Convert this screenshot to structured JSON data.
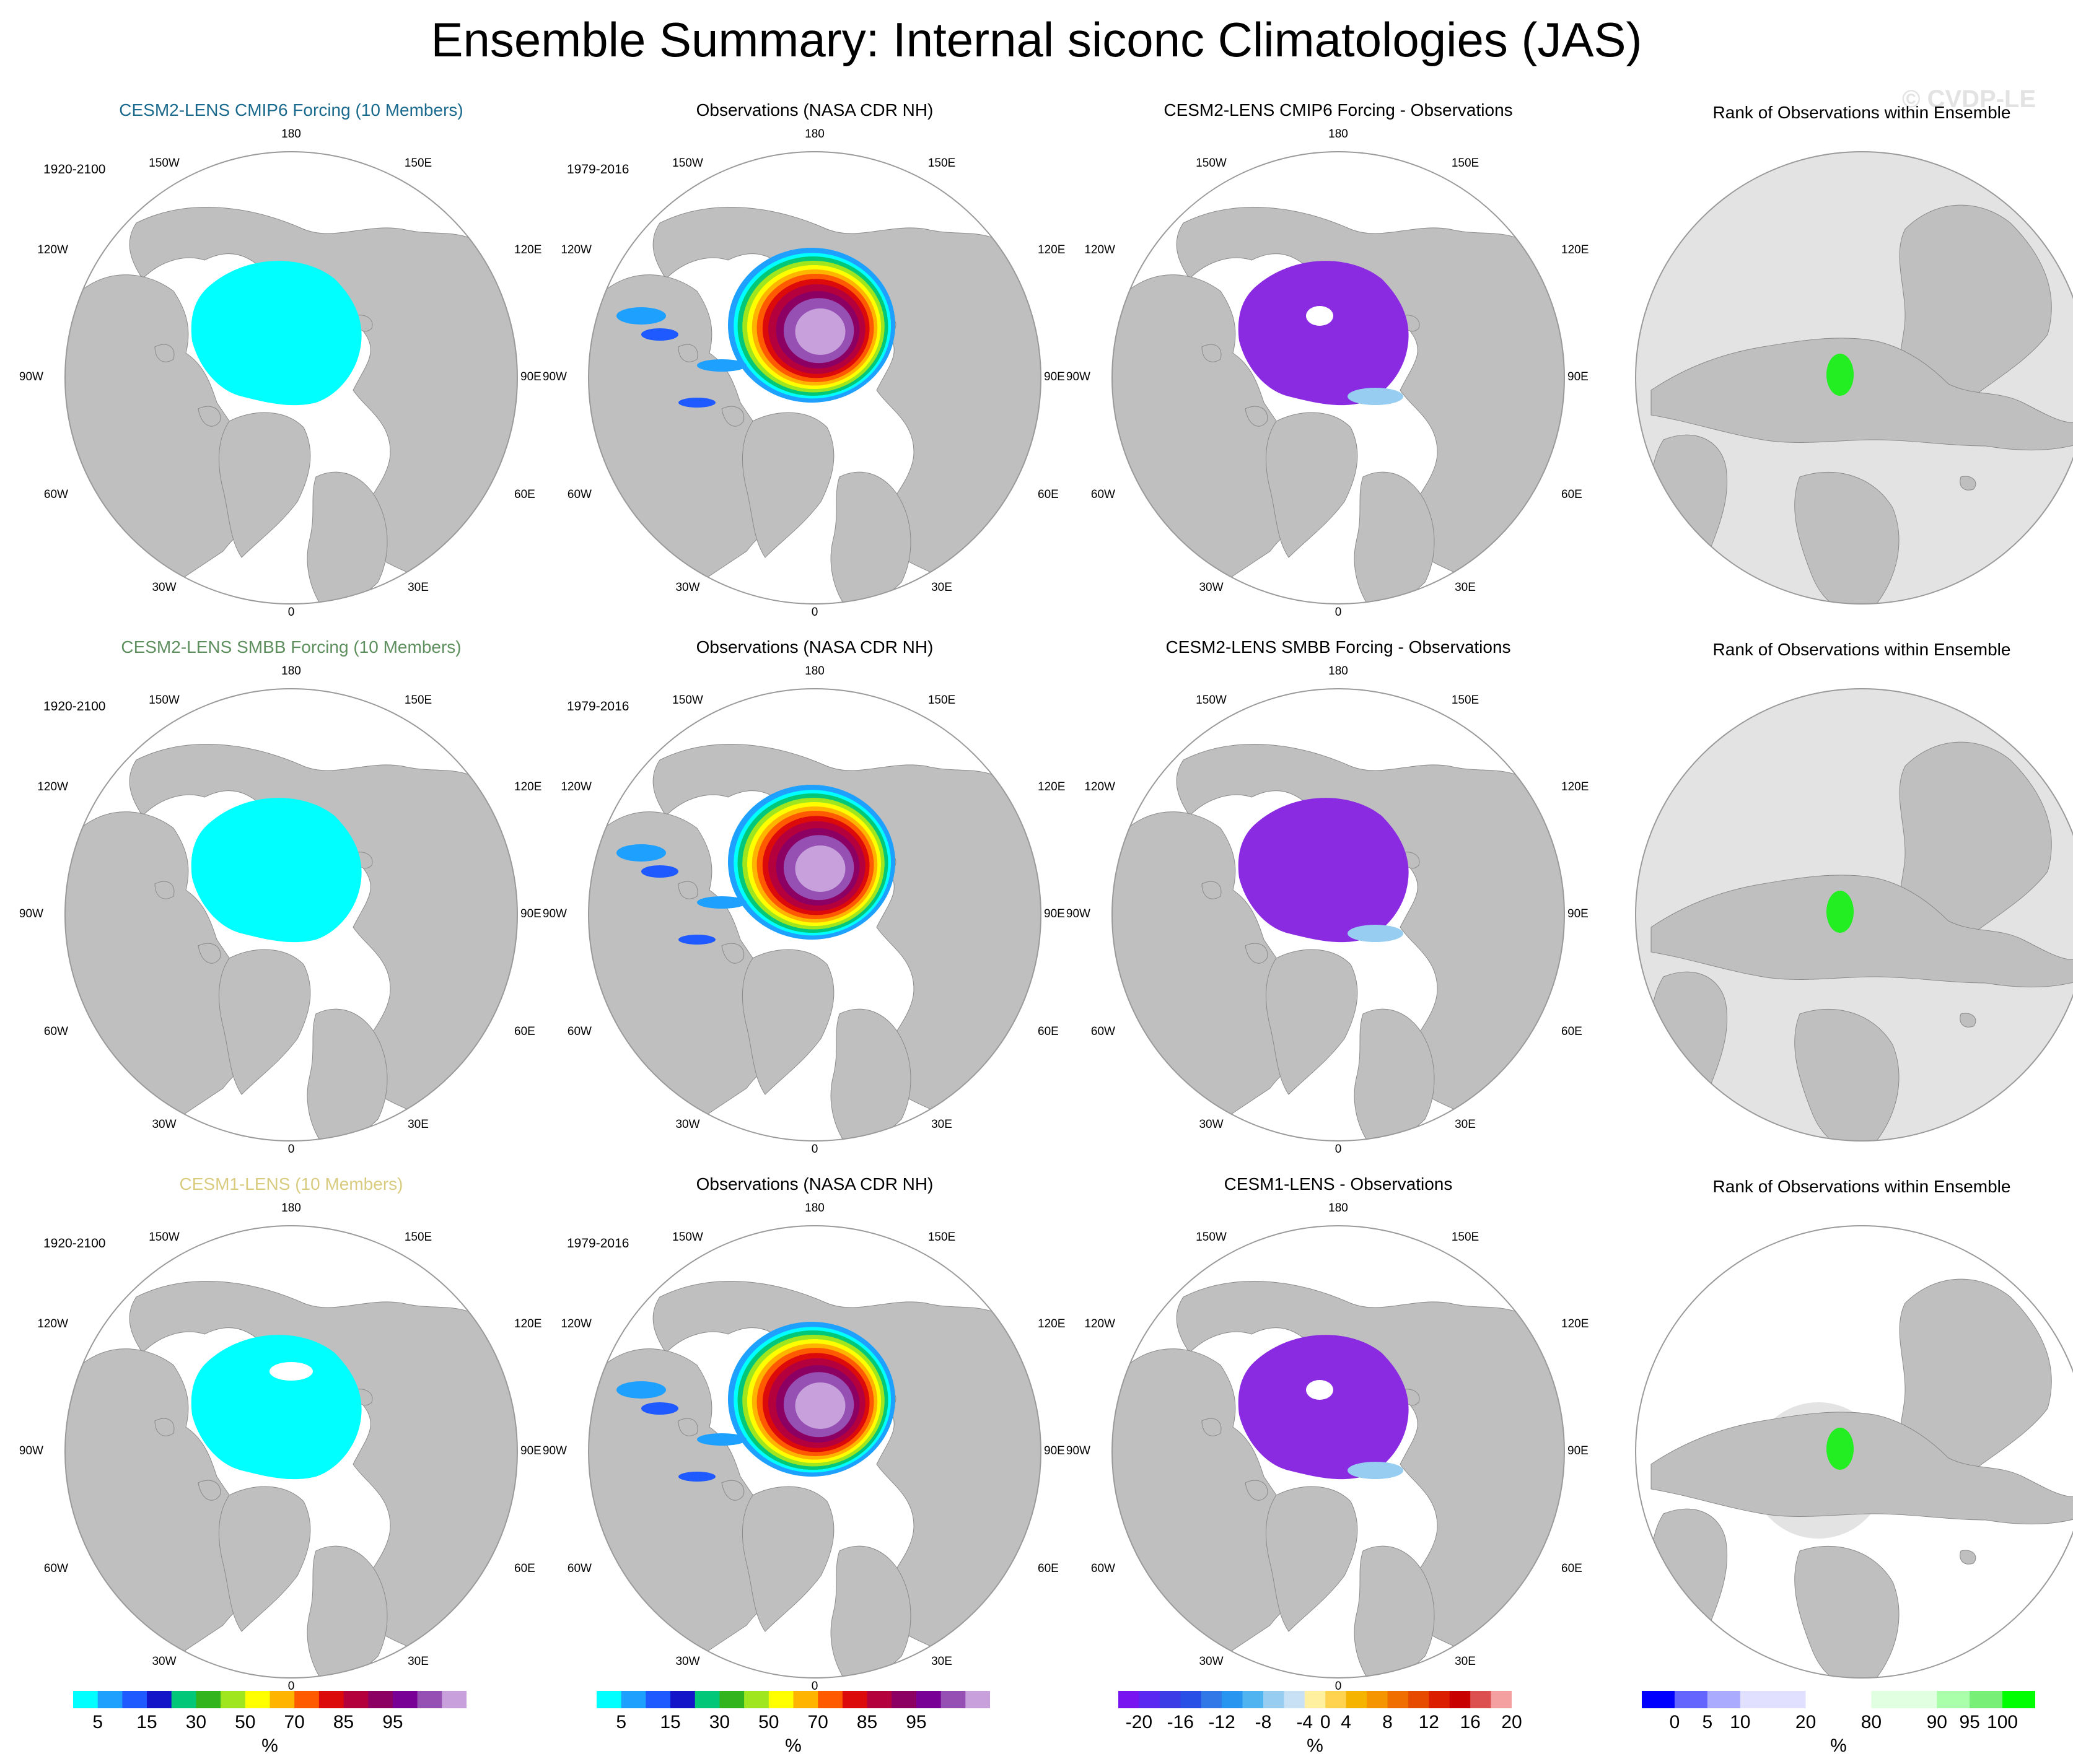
{
  "title": "Ensemble Summary: Internal siconc Climatologies (JAS)",
  "watermark": "© CVDP-LE",
  "colors": {
    "land": "#bfbfbf",
    "ocean": "#ffffff",
    "rank_disk": "#e3e3e3",
    "cesm2_cmip6_title": "#1a6a8e",
    "cesm2_smbb_title": "#5e8f5e",
    "cesm1_title": "#d9cc80",
    "model_ice": "#00ffff",
    "diff_ice": "#8a2be2",
    "rank_green": "#22ee22"
  },
  "rows": [
    {
      "model_title": "CESM2-LENS CMIP6 Forcing (10 Members)",
      "model_period": "1920-2100",
      "obs_title": "Observations (NASA CDR NH)",
      "obs_period": "1979-2016",
      "diff_title": "CESM2-LENS CMIP6 Forcing - Observations",
      "rank_title": "Rank of Observations within Ensemble"
    },
    {
      "model_title": "CESM2-LENS SMBB Forcing (10 Members)",
      "model_period": "1920-2100",
      "obs_title": "Observations (NASA CDR NH)",
      "obs_period": "1979-2016",
      "diff_title": "CESM2-LENS SMBB Forcing - Observations",
      "rank_title": "Rank of Observations within Ensemble"
    },
    {
      "model_title": "CESM1-LENS (10 Members)",
      "model_period": "1920-2100",
      "obs_title": "Observations (NASA CDR NH)",
      "obs_period": "1979-2016",
      "diff_title": "CESM1-LENS - Observations",
      "rank_title": "Rank of Observations within Ensemble"
    }
  ],
  "lon_labels": {
    "top": "180",
    "upper_left": "150W",
    "upper_right": "150E",
    "mid_upper_left": "120W",
    "mid_upper_right": "120E",
    "left": "90W",
    "right": "90E",
    "mid_lower_left": "60W",
    "mid_lower_right": "60E",
    "lower_left": "30W",
    "lower_right": "30E",
    "bottom": "0"
  },
  "colorbars": {
    "conc": {
      "unit": "%",
      "colors": [
        "#00ffff",
        "#1ea0ff",
        "#1e5aff",
        "#1414c8",
        "#00c878",
        "#32b41e",
        "#a0e61e",
        "#ffff00",
        "#ffb400",
        "#ff5a00",
        "#dc0a0a",
        "#b4003c",
        "#8c0064",
        "#780096",
        "#9650b4",
        "#c8a0dc"
      ],
      "labels": [
        "5",
        "15",
        "30",
        "50",
        "70",
        "85",
        "95"
      ]
    },
    "diff": {
      "unit": "%",
      "colors": [
        "#7814f0",
        "#5a28f0",
        "#3c3ce6",
        "#2850e6",
        "#3278e6",
        "#2896f0",
        "#50b4f0",
        "#96cdf0",
        "#c8e1f5",
        "#fff0a0",
        "#ffd250",
        "#f5b400",
        "#f59600",
        "#f06e00",
        "#e64b00",
        "#dc1e00",
        "#c80000",
        "#dc5050",
        "#f5a0a0"
      ],
      "labels": [
        "-20",
        "-16",
        "-12",
        "-8",
        "-4",
        "0",
        "4",
        "8",
        "12",
        "16",
        "20"
      ]
    },
    "rank": {
      "unit": "%",
      "colors": [
        "#0000ff",
        "#6464ff",
        "#aaaaff",
        "#e1e1ff",
        "#e1e1ff",
        "#ffffff",
        "#ffffff",
        "#e1ffe1",
        "#e1ffe1",
        "#aaffaa",
        "#78f078",
        "#00ff00"
      ],
      "labels": [
        "0",
        "5",
        "10",
        "20",
        "80",
        "90",
        "95",
        "100"
      ]
    }
  }
}
